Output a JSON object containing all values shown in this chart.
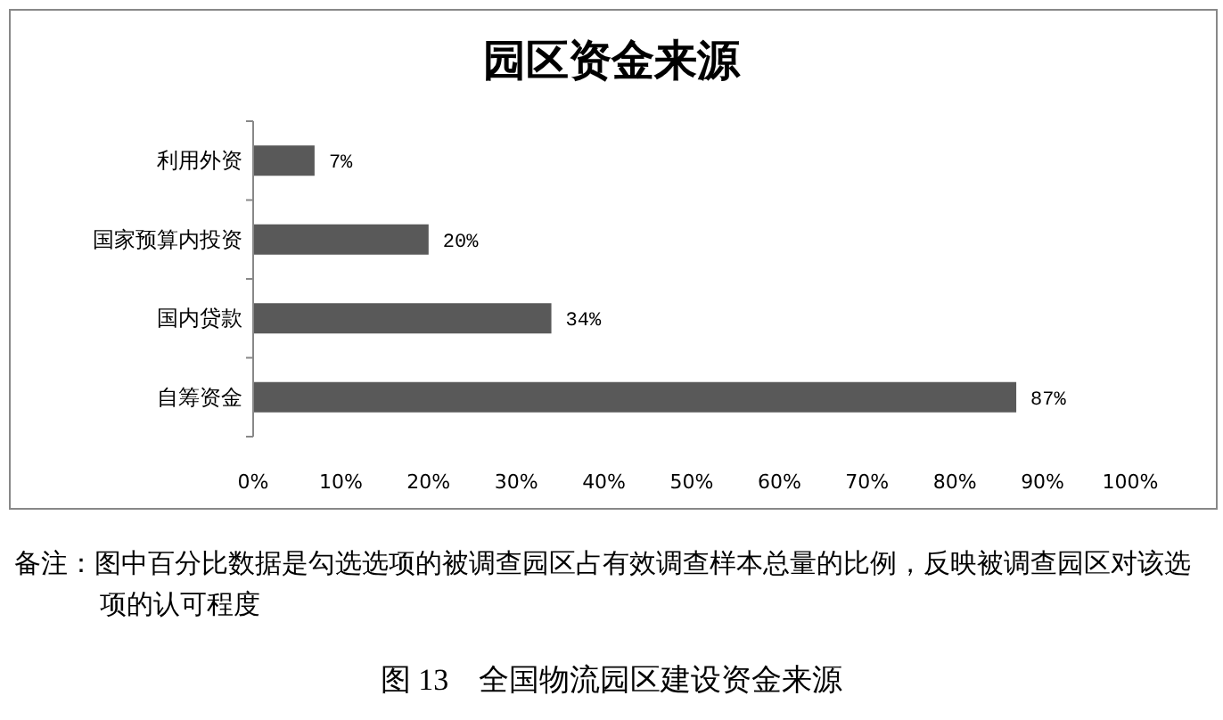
{
  "chart_data": {
    "type": "bar",
    "orientation": "horizontal",
    "title": "园区资金来源",
    "categories": [
      "利用外资",
      "国家预算内投资",
      "国内贷款",
      "自筹资金"
    ],
    "values": [
      7,
      20,
      34,
      87
    ],
    "value_labels": [
      "7%",
      "20%",
      "34%",
      "87%"
    ],
    "color": "#595959",
    "xlim": [
      0,
      100
    ],
    "xticks": [
      {
        "value": 0,
        "label": "0%"
      },
      {
        "value": 10,
        "label": "10%"
      },
      {
        "value": 20,
        "label": "20%"
      },
      {
        "value": 30,
        "label": "30%"
      },
      {
        "value": 40,
        "label": "40%"
      },
      {
        "value": 50,
        "label": "50%"
      },
      {
        "value": 60,
        "label": "60%"
      },
      {
        "value": 70,
        "label": "70%"
      },
      {
        "value": 80,
        "label": "80%"
      },
      {
        "value": 90,
        "label": "90%"
      },
      {
        "value": 100,
        "label": "100%"
      }
    ],
    "annotations": [
      "备注：图中百分比数据是勾选选项的被调查园区占有效调查样本总量的比例，反映被调查园区对该选项的认可程度",
      "图 13　全国物流园区建设资金来源"
    ]
  }
}
